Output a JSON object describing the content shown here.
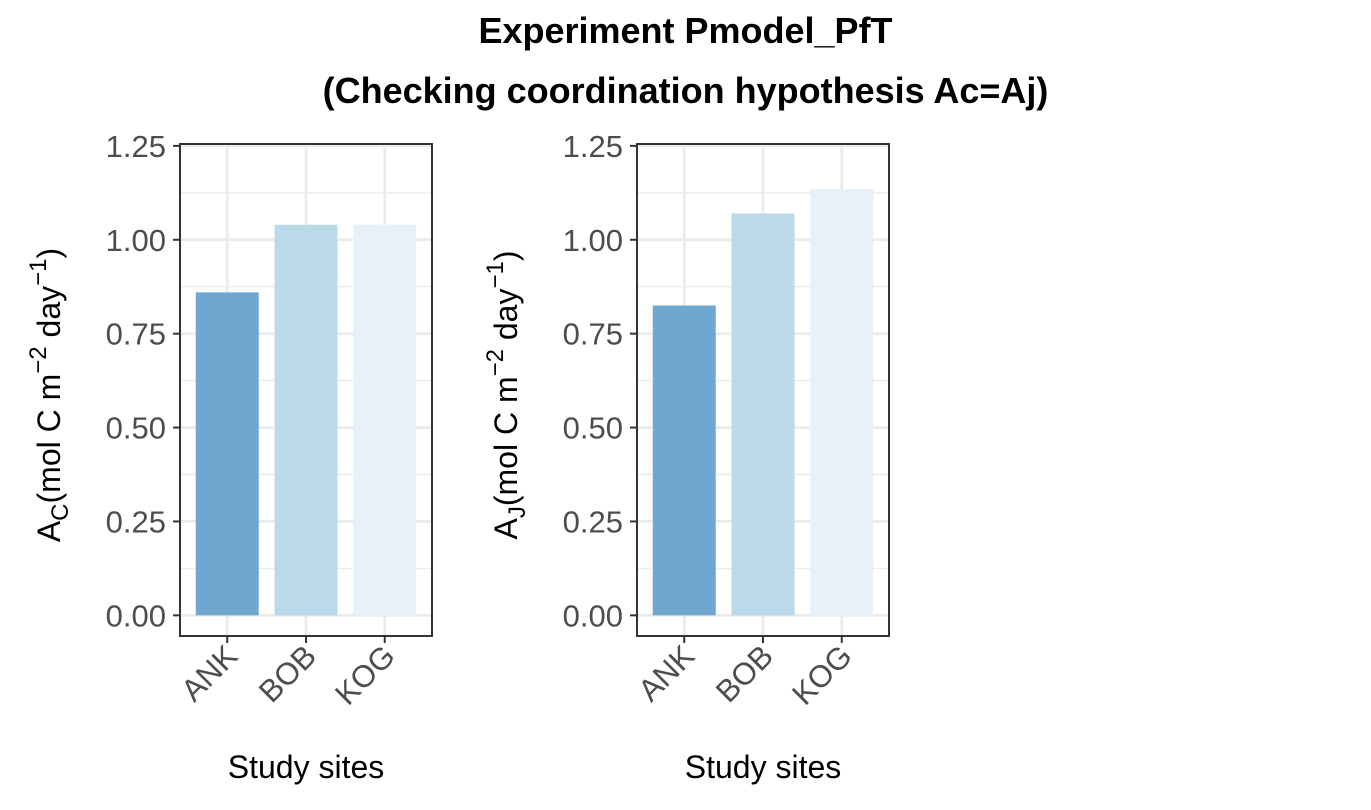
{
  "title": "Experiment Pmodel_PfT",
  "subtitle": "(Checking coordination hypothesis Ac=Aj)",
  "colors": {
    "panel_border": "#333333",
    "grid": "#ebebeb",
    "tick": "#333333",
    "bar_colors": [
      "#6fa7d1",
      "#badaea",
      "#e8f0f9"
    ]
  },
  "chart_data": [
    {
      "type": "bar",
      "categories": [
        "ANK",
        "BOB",
        "KOG"
      ],
      "values": [
        0.86,
        1.04,
        1.04
      ],
      "xlabel": "Study sites",
      "ylabel_main": "A",
      "ylabel_sub": "C",
      "ylabel_unit": "mol C m",
      "ylabel_exp1": "−2",
      "ylabel_mid": " day",
      "ylabel_exp2": "−1",
      "ylim": [
        -0.055,
        1.255
      ],
      "yticks": [
        0,
        0.25,
        0.5,
        0.75,
        1,
        1.25
      ],
      "ytick_labels": [
        "0.00",
        "0.25",
        "0.50",
        "0.75",
        "1.00",
        "1.25"
      ],
      "grid": true
    },
    {
      "type": "bar",
      "categories": [
        "ANK",
        "BOB",
        "KOG"
      ],
      "values": [
        0.825,
        1.07,
        1.135
      ],
      "xlabel": "Study sites",
      "ylabel_main": "A",
      "ylabel_sub": "J",
      "ylabel_unit": "mol C m",
      "ylabel_exp1": "−2",
      "ylabel_mid": " day",
      "ylabel_exp2": "−1",
      "ylim": [
        -0.055,
        1.255
      ],
      "yticks": [
        0,
        0.25,
        0.5,
        0.75,
        1,
        1.25
      ],
      "ytick_labels": [
        "0.00",
        "0.25",
        "0.50",
        "0.75",
        "1.00",
        "1.25"
      ],
      "grid": true
    }
  ]
}
